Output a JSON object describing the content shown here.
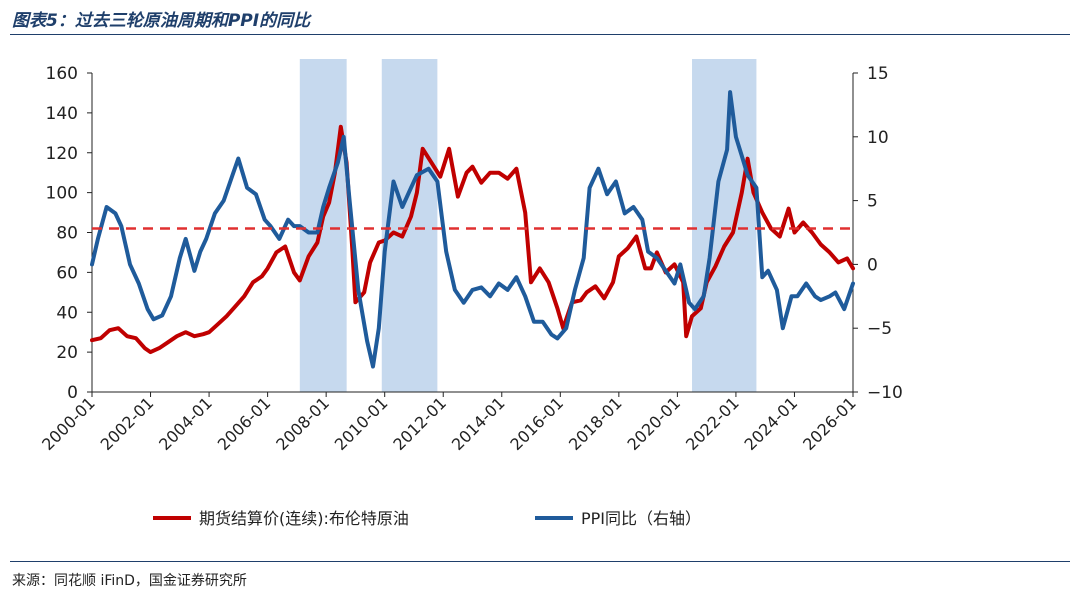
{
  "header": {
    "title": "图表5：过去三轮原油周期和PPI的同比"
  },
  "footer": {
    "source": "来源：同花顺 iFinD，国金证券研究所"
  },
  "colors": {
    "oil": "#c00000",
    "ppi": "#1f5b9b",
    "shade": "#c6d9ee",
    "ref": "#e03030"
  },
  "chart_data": {
    "type": "line",
    "x_ticks": [
      "2000-01",
      "2002-01",
      "2004-01",
      "2006-01",
      "2008-01",
      "2010-01",
      "2012-01",
      "2014-01",
      "2016-01",
      "2018-01",
      "2020-01",
      "2022-01",
      "2024-01",
      "2026-01"
    ],
    "y_left": {
      "ylim": [
        0,
        160
      ],
      "ticks": [
        "0",
        "20",
        "40",
        "60",
        "80",
        "100",
        "120",
        "140",
        "160"
      ]
    },
    "y_right": {
      "ylim": [
        -10,
        15
      ],
      "ticks": [
        "−10",
        "−5",
        "0",
        "5",
        "10",
        "15"
      ]
    },
    "reference_line": {
      "axis": "left",
      "value": 82,
      "style": "dashed"
    },
    "shaded_periods": [
      {
        "start": 2007.1,
        "end": 2008.7
      },
      {
        "start": 2009.9,
        "end": 2011.8
      },
      {
        "start": 2020.5,
        "end": 2022.7
      }
    ],
    "legend": {
      "position": "bottom-center"
    },
    "series": [
      {
        "name": "期货结算价(连续):布伦特原油",
        "axis": "left",
        "color": "#c00000",
        "points": [
          [
            2000.0,
            26
          ],
          [
            2000.3,
            27
          ],
          [
            2000.6,
            31
          ],
          [
            2000.9,
            32
          ],
          [
            2001.2,
            28
          ],
          [
            2001.5,
            27
          ],
          [
            2001.8,
            22
          ],
          [
            2002.0,
            20
          ],
          [
            2002.3,
            22
          ],
          [
            2002.6,
            25
          ],
          [
            2002.9,
            28
          ],
          [
            2003.2,
            30
          ],
          [
            2003.5,
            28
          ],
          [
            2003.8,
            29
          ],
          [
            2004.0,
            30
          ],
          [
            2004.3,
            34
          ],
          [
            2004.6,
            38
          ],
          [
            2004.9,
            43
          ],
          [
            2005.2,
            48
          ],
          [
            2005.5,
            55
          ],
          [
            2005.8,
            58
          ],
          [
            2006.0,
            62
          ],
          [
            2006.3,
            70
          ],
          [
            2006.6,
            73
          ],
          [
            2006.9,
            60
          ],
          [
            2007.1,
            56
          ],
          [
            2007.4,
            68
          ],
          [
            2007.7,
            75
          ],
          [
            2007.9,
            88
          ],
          [
            2008.1,
            95
          ],
          [
            2008.3,
            110
          ],
          [
            2008.5,
            133
          ],
          [
            2008.7,
            115
          ],
          [
            2008.9,
            70
          ],
          [
            2009.0,
            45
          ],
          [
            2009.3,
            50
          ],
          [
            2009.5,
            65
          ],
          [
            2009.8,
            75
          ],
          [
            2010.0,
            76
          ],
          [
            2010.3,
            80
          ],
          [
            2010.6,
            78
          ],
          [
            2010.9,
            88
          ],
          [
            2011.1,
            100
          ],
          [
            2011.3,
            122
          ],
          [
            2011.6,
            115
          ],
          [
            2011.9,
            108
          ],
          [
            2012.2,
            122
          ],
          [
            2012.5,
            98
          ],
          [
            2012.8,
            110
          ],
          [
            2013.0,
            113
          ],
          [
            2013.3,
            105
          ],
          [
            2013.6,
            110
          ],
          [
            2013.9,
            110
          ],
          [
            2014.2,
            107
          ],
          [
            2014.5,
            112
          ],
          [
            2014.8,
            90
          ],
          [
            2015.0,
            55
          ],
          [
            2015.3,
            62
          ],
          [
            2015.6,
            55
          ],
          [
            2015.9,
            42
          ],
          [
            2016.1,
            32
          ],
          [
            2016.4,
            45
          ],
          [
            2016.7,
            46
          ],
          [
            2016.9,
            50
          ],
          [
            2017.2,
            53
          ],
          [
            2017.5,
            47
          ],
          [
            2017.8,
            55
          ],
          [
            2018.0,
            68
          ],
          [
            2018.3,
            72
          ],
          [
            2018.6,
            78
          ],
          [
            2018.9,
            62
          ],
          [
            2019.1,
            62
          ],
          [
            2019.3,
            70
          ],
          [
            2019.6,
            60
          ],
          [
            2019.9,
            64
          ],
          [
            2020.2,
            55
          ],
          [
            2020.3,
            28
          ],
          [
            2020.5,
            38
          ],
          [
            2020.8,
            42
          ],
          [
            2021.0,
            55
          ],
          [
            2021.3,
            63
          ],
          [
            2021.6,
            73
          ],
          [
            2021.9,
            80
          ],
          [
            2022.2,
            100
          ],
          [
            2022.4,
            117
          ],
          [
            2022.6,
            100
          ],
          [
            2022.9,
            90
          ],
          [
            2023.2,
            82
          ],
          [
            2023.5,
            78
          ],
          [
            2023.8,
            92
          ],
          [
            2024.0,
            80
          ],
          [
            2024.3,
            85
          ],
          [
            2024.6,
            80
          ],
          [
            2024.9,
            74
          ],
          [
            2025.2,
            70
          ],
          [
            2025.5,
            65
          ],
          [
            2025.8,
            67
          ],
          [
            2026.0,
            62
          ]
        ]
      },
      {
        "name": "PPI同比（右轴）",
        "axis": "right",
        "color": "#1f5b9b",
        "points": [
          [
            2000.0,
            0.0
          ],
          [
            2000.2,
            2.0
          ],
          [
            2000.5,
            4.5
          ],
          [
            2000.8,
            4.0
          ],
          [
            2001.0,
            3.0
          ],
          [
            2001.3,
            0.0
          ],
          [
            2001.6,
            -1.5
          ],
          [
            2001.9,
            -3.5
          ],
          [
            2002.1,
            -4.3
          ],
          [
            2002.4,
            -4.0
          ],
          [
            2002.7,
            -2.5
          ],
          [
            2003.0,
            0.5
          ],
          [
            2003.2,
            2.0
          ],
          [
            2003.5,
            -0.5
          ],
          [
            2003.7,
            1.0
          ],
          [
            2003.9,
            2.0
          ],
          [
            2004.2,
            4.0
          ],
          [
            2004.5,
            5.0
          ],
          [
            2004.8,
            7.0
          ],
          [
            2005.0,
            8.3
          ],
          [
            2005.3,
            6.0
          ],
          [
            2005.6,
            5.5
          ],
          [
            2005.9,
            3.5
          ],
          [
            2006.1,
            3.0
          ],
          [
            2006.4,
            2.0
          ],
          [
            2006.7,
            3.5
          ],
          [
            2006.9,
            3.0
          ],
          [
            2007.1,
            3.0
          ],
          [
            2007.4,
            2.5
          ],
          [
            2007.7,
            2.5
          ],
          [
            2007.9,
            4.5
          ],
          [
            2008.1,
            6.0
          ],
          [
            2008.4,
            8.0
          ],
          [
            2008.6,
            10.0
          ],
          [
            2008.8,
            5.0
          ],
          [
            2009.1,
            -2.0
          ],
          [
            2009.4,
            -6.0
          ],
          [
            2009.6,
            -8.0
          ],
          [
            2009.8,
            -5.0
          ],
          [
            2010.0,
            1.0
          ],
          [
            2010.3,
            6.5
          ],
          [
            2010.6,
            4.5
          ],
          [
            2010.9,
            6.0
          ],
          [
            2011.1,
            7.0
          ],
          [
            2011.5,
            7.5
          ],
          [
            2011.8,
            6.5
          ],
          [
            2012.1,
            1.0
          ],
          [
            2012.4,
            -2.0
          ],
          [
            2012.7,
            -3.0
          ],
          [
            2013.0,
            -2.0
          ],
          [
            2013.3,
            -1.8
          ],
          [
            2013.6,
            -2.5
          ],
          [
            2013.9,
            -1.5
          ],
          [
            2014.2,
            -2.0
          ],
          [
            2014.5,
            -1.0
          ],
          [
            2014.8,
            -2.5
          ],
          [
            2015.1,
            -4.5
          ],
          [
            2015.4,
            -4.5
          ],
          [
            2015.7,
            -5.5
          ],
          [
            2015.9,
            -5.8
          ],
          [
            2016.2,
            -5.0
          ],
          [
            2016.5,
            -2.0
          ],
          [
            2016.8,
            0.5
          ],
          [
            2017.0,
            6.0
          ],
          [
            2017.3,
            7.5
          ],
          [
            2017.6,
            5.5
          ],
          [
            2017.9,
            6.5
          ],
          [
            2018.2,
            4.0
          ],
          [
            2018.5,
            4.5
          ],
          [
            2018.8,
            3.5
          ],
          [
            2019.0,
            1.0
          ],
          [
            2019.3,
            0.5
          ],
          [
            2019.6,
            -0.5
          ],
          [
            2019.9,
            -1.5
          ],
          [
            2020.1,
            0.0
          ],
          [
            2020.4,
            -3.0
          ],
          [
            2020.6,
            -3.5
          ],
          [
            2020.9,
            -2.5
          ],
          [
            2021.1,
            0.5
          ],
          [
            2021.4,
            6.5
          ],
          [
            2021.7,
            9.0
          ],
          [
            2021.8,
            13.5
          ],
          [
            2022.0,
            10.0
          ],
          [
            2022.2,
            8.5
          ],
          [
            2022.4,
            7.0
          ],
          [
            2022.7,
            6.0
          ],
          [
            2022.9,
            -1.0
          ],
          [
            2023.1,
            -0.5
          ],
          [
            2023.4,
            -2.0
          ],
          [
            2023.6,
            -5.0
          ],
          [
            2023.9,
            -2.5
          ],
          [
            2024.1,
            -2.5
          ],
          [
            2024.4,
            -1.5
          ],
          [
            2024.7,
            -2.5
          ],
          [
            2024.9,
            -2.8
          ],
          [
            2025.2,
            -2.5
          ],
          [
            2025.4,
            -2.2
          ],
          [
            2025.7,
            -3.5
          ],
          [
            2026.0,
            -1.5
          ]
        ]
      }
    ]
  }
}
